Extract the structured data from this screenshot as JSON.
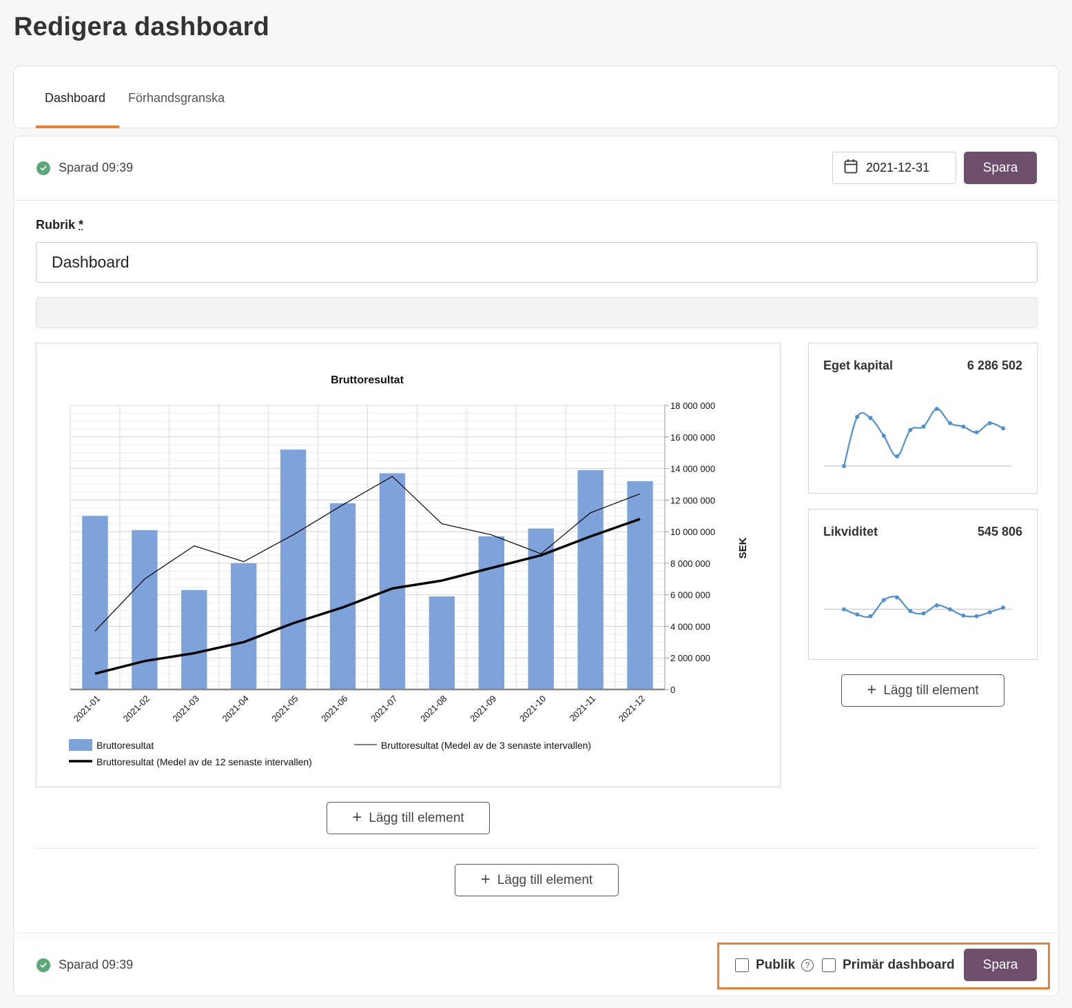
{
  "page": {
    "title": "Redigera dashboard"
  },
  "tabs": [
    {
      "label": "Dashboard"
    },
    {
      "label": "Förhandsgranska"
    }
  ],
  "status": {
    "saved_text": "Sparad 09:39"
  },
  "toolbar": {
    "date": "2021-12-31",
    "save_label": "Spara"
  },
  "form": {
    "rubrik_label": "Rubrik",
    "required_mark": "*",
    "rubrik_value": "Dashboard"
  },
  "chart_data": {
    "type": "bar",
    "title": "Bruttoresultat",
    "categories": [
      "2021-01",
      "2021-02",
      "2021-03",
      "2021-04",
      "2021-05",
      "2021-06",
      "2021-07",
      "2021-08",
      "2021-09",
      "2021-10",
      "2021-11",
      "2021-12"
    ],
    "series": [
      {
        "name": "Bruttoresultat",
        "kind": "bar",
        "color": "#7ea3db",
        "values": [
          11000000,
          10100000,
          6300000,
          8000000,
          15200000,
          11800000,
          13700000,
          5900000,
          9700000,
          10200000,
          13900000,
          13200000
        ]
      },
      {
        "name": "Bruttoresultat (Medel av de 3 senaste intervallen)",
        "kind": "line",
        "color": "#000000",
        "values": [
          3700000,
          7000000,
          9100000,
          8100000,
          9800000,
          11700000,
          13500000,
          10500000,
          9800000,
          8600000,
          11200000,
          12400000
        ]
      },
      {
        "name": "Bruttoresultat (Medel av de 12 senaste intervallen)",
        "kind": "line-bold",
        "color": "#000000",
        "values": [
          1000000,
          1800000,
          2300000,
          3000000,
          4200000,
          5200000,
          6400000,
          6900000,
          7700000,
          8500000,
          9700000,
          10800000
        ]
      }
    ],
    "y_ticks": [
      "18 000 000",
      "16 000 000",
      "14 000 000",
      "12 000 000",
      "10 000 000",
      "8 000 000",
      "6 000 000",
      "4 000 000",
      "2 000 000",
      "0"
    ],
    "ylabel": "SEK",
    "ylim": [
      0,
      18000000
    ],
    "legend": [
      "Bruttoresultat",
      "Bruttoresultat (Medel av de 3 senaste intervallen)",
      "Bruttoresultat (Medel av de 12 senaste intervallen)"
    ]
  },
  "kpis": [
    {
      "title": "Eget kapital",
      "value": "6 286 502",
      "sparkline": [
        0.0,
        0.86,
        0.84,
        0.53,
        0.17,
        0.63,
        0.69,
        1.0,
        0.75,
        0.69,
        0.59,
        0.75,
        0.66
      ],
      "baseline": 0.0
    },
    {
      "title": "Likviditet",
      "value": "545 806",
      "sparkline": [
        0.4,
        0.31,
        0.28,
        0.56,
        0.61,
        0.37,
        0.33,
        0.47,
        0.4,
        0.29,
        0.28,
        0.35,
        0.43
      ],
      "baseline": 0.4
    }
  ],
  "actions": {
    "add_element_label": "Lägg till element"
  },
  "footer": {
    "public_label": "Publik",
    "primary_label": "Primär dashboard",
    "save_label": "Spara"
  },
  "colors": {
    "accent": "#ee7d35",
    "primary_button": "#6d4f6c",
    "bar": "#7ea3db",
    "spark": "#4f90d0",
    "success": "#5aa877"
  }
}
